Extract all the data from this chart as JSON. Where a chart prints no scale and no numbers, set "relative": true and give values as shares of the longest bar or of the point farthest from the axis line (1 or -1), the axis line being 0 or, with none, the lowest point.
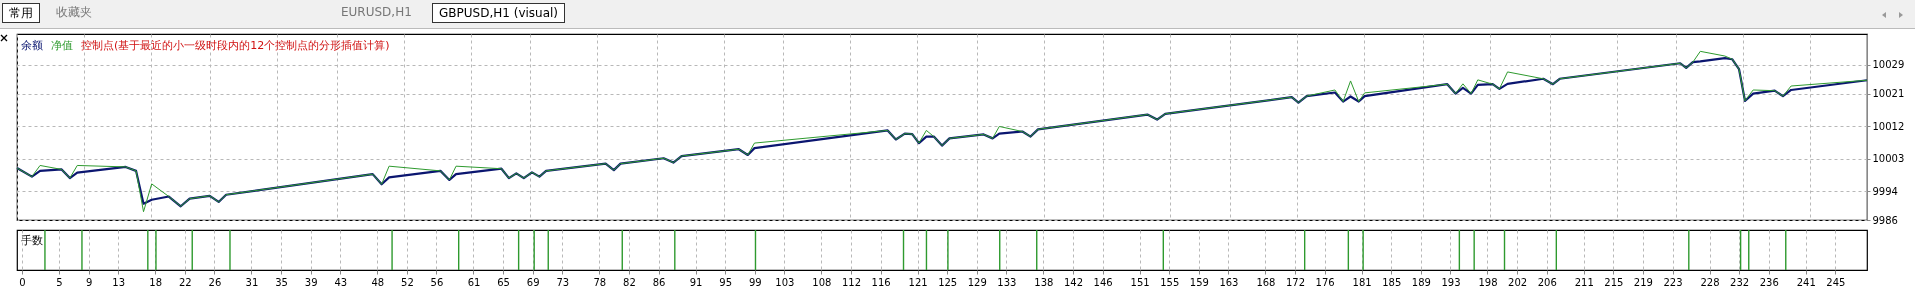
{
  "chart_data": [
    {
      "type": "line",
      "legend": "top left",
      "grid": true,
      "tick_labels": "y",
      "marker": "none",
      "line_style": "solid",
      "annotations": [
        "控制点(基于最近的小一级时段内的12个控制点的分形插值计算)",
        "常用",
        "收藏夹",
        "EURUSD,H1",
        "GBPUSD,H1 (visual)"
      ],
      "xlim": [
        0,
        248.6
      ],
      "xticks": [
        0,
        5,
        9,
        13,
        18,
        22,
        26,
        31,
        35,
        39,
        43,
        48,
        52,
        56,
        61,
        65,
        69,
        73,
        78,
        82,
        86,
        91,
        95,
        99,
        103,
        108,
        112,
        116,
        121,
        125,
        129,
        133,
        138,
        142,
        146,
        151,
        155,
        159,
        163,
        168,
        172,
        176,
        181,
        185,
        189,
        193,
        198,
        202,
        206,
        211,
        215,
        219,
        223,
        228,
        232,
        236,
        241,
        245
      ],
      "ylim": [
        9986,
        10037.5
      ],
      "yticks": [
        9986,
        9994,
        10003,
        10012,
        10021,
        10029
      ],
      "x": [
        0,
        2,
        3.1,
        6,
        7.1,
        8.1,
        14.6,
        16,
        17,
        18.1,
        20.4,
        22,
        23.2,
        25.9,
        27.1,
        28.1,
        47.8,
        49,
        50,
        56.9,
        58.1,
        59,
        65.1,
        66.1,
        67.1,
        68.1,
        69.2,
        70.2,
        71.1,
        79.1,
        80.2,
        81.1,
        86.9,
        88.2,
        89.3,
        97,
        98.2,
        99.1,
        117,
        118.1,
        119.3,
        120.3,
        121.2,
        122.2,
        123.2,
        124.3,
        125.3,
        129.9,
        131.1,
        132,
        135.1,
        136.2,
        137.2,
        151.9,
        153.2,
        154.3,
        171.3,
        172.2,
        173.3,
        177.1,
        178.2,
        179.2,
        180.3,
        181.1,
        192.2,
        193.3,
        194.3,
        195.4,
        196.3,
        198.3,
        199.2,
        200.3,
        205.1,
        206.4,
        207.3,
        223.5,
        224.3,
        225.2,
        226.2,
        229.5,
        230.5,
        231.4,
        232.2,
        233.3,
        236.2,
        237.3,
        238.4,
        248.6
      ],
      "series": [
        {
          "name": "余额",
          "color": "#0b1670",
          "values": [
            10000.4,
            9998.0,
            9999.6,
            10000.0,
            9997.6,
            9999.1,
            10000.7,
            9999.6,
            9990.5,
            9991.6,
            9992.5,
            9989.8,
            9991.9,
            9992.7,
            9991.0,
            9993.0,
            9998.7,
            9995.9,
            9997.8,
            9999.6,
            9997.1,
            9998.7,
            10000.2,
            9997.6,
            9998.9,
            9997.6,
            9999.2,
            9998.0,
            9999.6,
            10001.6,
            9999.8,
            10001.6,
            10003.1,
            10001.9,
            10003.7,
            10005.6,
            10004.0,
            10005.9,
            10010.8,
            10008.3,
            10009.9,
            10009.8,
            10007.3,
            10009.1,
            10009.1,
            10006.6,
            10008.6,
            10009.7,
            10008.6,
            10009.9,
            10010.5,
            10009.1,
            10011.1,
            10015.2,
            10013.8,
            10015.4,
            10020.0,
            10018.5,
            10020.3,
            10021.3,
            10018.8,
            10020.2,
            10018.8,
            10020.3,
            10023.6,
            10021.0,
            10022.6,
            10021.0,
            10023.4,
            10023.6,
            10022.3,
            10023.7,
            10025.1,
            10023.6,
            10025.1,
            10029.4,
            10028.1,
            10029.7,
            10029.9,
            10030.8,
            10030.5,
            10027.8,
            10019.0,
            10021.0,
            10021.8,
            10020.3,
            10022.0,
            10024.7
          ]
        },
        {
          "name": "净值",
          "color": "#2e9a2e",
          "values": [
            10000.4,
            9998.0,
            10001.1,
            10000.0,
            9997.6,
            10001.1,
            10000.7,
            9999.6,
            9988.3,
            9996.0,
            9992.5,
            9989.8,
            9991.9,
            9992.7,
            9991.0,
            9993.0,
            9998.7,
            9995.9,
            10000.9,
            9999.6,
            9997.1,
            10000.9,
            10000.2,
            9997.6,
            9998.9,
            9997.6,
            9999.2,
            9998.0,
            9999.6,
            10001.6,
            9999.8,
            10001.6,
            10003.1,
            10001.9,
            10003.7,
            10005.6,
            10004.0,
            10007.3,
            10010.8,
            10008.3,
            10009.9,
            10009.8,
            10007.3,
            10010.8,
            10009.1,
            10006.6,
            10008.6,
            10009.7,
            10008.6,
            10011.9,
            10010.5,
            10009.1,
            10011.1,
            10015.2,
            10013.8,
            10015.4,
            10020.0,
            10018.5,
            10020.3,
            10022.0,
            10018.8,
            10024.5,
            10018.8,
            10021.2,
            10023.6,
            10021.0,
            10023.7,
            10021.0,
            10024.8,
            10023.6,
            10022.3,
            10027.0,
            10025.1,
            10023.6,
            10025.1,
            10029.4,
            10028.1,
            10029.7,
            10032.7,
            10031.4,
            10030.5,
            10027.8,
            10019.0,
            10022.0,
            10021.8,
            10020.3,
            10023.1,
            10024.7
          ]
        }
      ]
    },
    {
      "type": "bar",
      "title": "手数",
      "relative": true,
      "grid": "x",
      "tick_labels": "x",
      "color": "#2e9a2e",
      "xlim": [
        0,
        248.6
      ],
      "xticks": [
        0,
        5,
        9,
        13,
        18,
        22,
        26,
        31,
        35,
        39,
        43,
        48,
        52,
        56,
        61,
        65,
        69,
        73,
        78,
        82,
        86,
        91,
        95,
        99,
        103,
        108,
        112,
        116,
        121,
        125,
        129,
        133,
        138,
        142,
        146,
        151,
        155,
        159,
        163,
        168,
        172,
        176,
        181,
        185,
        189,
        193,
        198,
        202,
        206,
        211,
        215,
        219,
        223,
        228,
        232,
        236,
        241,
        245
      ],
      "x": [
        3.1,
        8.1,
        17,
        18.1,
        23,
        28.1,
        50,
        59,
        67.1,
        69.2,
        71.1,
        81.1,
        88.2,
        99.1,
        119.1,
        122.2,
        125.1,
        132.1,
        137.1,
        154.2,
        173.3,
        179.2,
        181.2,
        194.2,
        196.2,
        200.3,
        207.3,
        225.2,
        232.2,
        233.3,
        238.3
      ],
      "values": [
        1,
        1,
        1,
        1,
        1,
        1,
        1,
        1,
        1,
        1,
        1,
        1,
        1,
        1,
        1,
        1,
        1,
        1,
        1,
        1,
        1,
        1,
        1,
        1,
        1,
        1,
        1,
        1,
        1,
        1,
        1
      ]
    }
  ]
}
